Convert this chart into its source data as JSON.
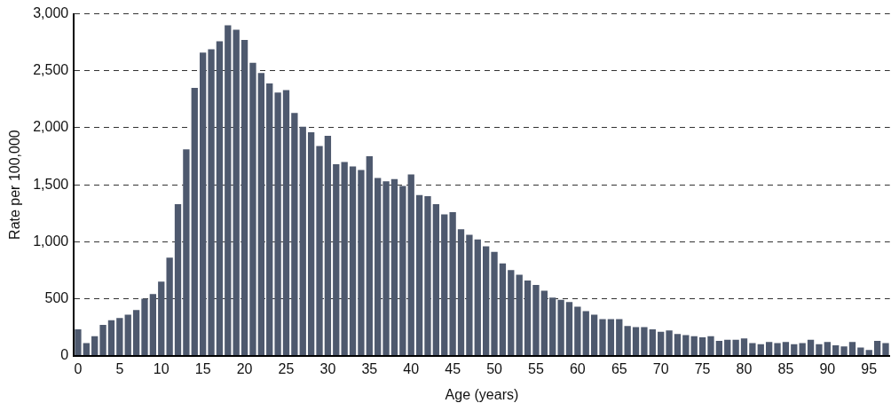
{
  "chart_data": {
    "type": "bar",
    "xlabel": "Age (years)",
    "ylabel": "Rate per 100,000",
    "categories": [
      "0",
      null,
      null,
      null,
      null,
      "5",
      null,
      null,
      null,
      null,
      "10",
      null,
      null,
      null,
      null,
      "15",
      null,
      null,
      null,
      null,
      "20",
      null,
      null,
      null,
      null,
      "25",
      null,
      null,
      null,
      null,
      "30",
      null,
      null,
      null,
      null,
      "35",
      null,
      null,
      null,
      null,
      "40",
      null,
      null,
      null,
      null,
      "45",
      null,
      null,
      null,
      null,
      "50",
      null,
      null,
      null,
      null,
      "55",
      null,
      null,
      null,
      null,
      "60",
      null,
      null,
      null,
      null,
      "65",
      null,
      null,
      null,
      null,
      "70",
      null,
      null,
      null,
      null,
      "75",
      null,
      null,
      null,
      null,
      "80",
      null,
      null,
      null,
      null,
      "85",
      null,
      null,
      null,
      null,
      "90",
      null,
      null,
      null,
      null,
      "95",
      null,
      null
    ],
    "values": [
      230,
      110,
      170,
      270,
      310,
      330,
      360,
      400,
      500,
      540,
      650,
      860,
      1330,
      1810,
      2350,
      2660,
      2690,
      2760,
      2900,
      2860,
      2770,
      2570,
      2480,
      2390,
      2310,
      2330,
      2130,
      2010,
      1960,
      1840,
      1930,
      1680,
      1700,
      1660,
      1630,
      1750,
      1560,
      1530,
      1550,
      1490,
      1590,
      1410,
      1400,
      1330,
      1240,
      1260,
      1110,
      1060,
      1020,
      960,
      910,
      810,
      750,
      710,
      660,
      620,
      570,
      510,
      490,
      470,
      430,
      390,
      360,
      320,
      320,
      320,
      260,
      250,
      250,
      230,
      210,
      220,
      190,
      180,
      170,
      160,
      170,
      130,
      140,
      140,
      150,
      110,
      100,
      120,
      110,
      120,
      100,
      110,
      140,
      100,
      120,
      90,
      80,
      120,
      70,
      50,
      130,
      110
    ],
    "color": "#4e596e",
    "ylim": [
      0,
      3000
    ],
    "yticks": [
      0,
      500,
      {
        "value": 1000,
        "label": "1,000"
      },
      {
        "value": 1500,
        "label": "1,500"
      },
      {
        "value": 2000,
        "label": "2,000"
      },
      {
        "value": 2500,
        "label": "2,500"
      },
      {
        "value": 3000,
        "label": "3,000"
      }
    ],
    "grid": "y"
  }
}
